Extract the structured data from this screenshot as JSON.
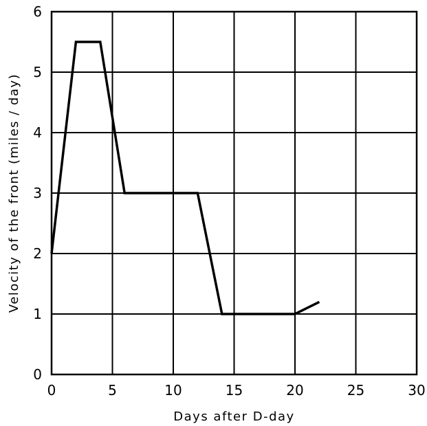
{
  "chart_data": {
    "type": "line",
    "title": "",
    "xlabel": "Days after D-day",
    "ylabel": "Velocity of the front (miles / day)",
    "xlim": [
      0,
      30
    ],
    "ylim": [
      0,
      6
    ],
    "xticks": [
      "0",
      "5",
      "10",
      "15",
      "20",
      "25",
      "30"
    ],
    "yticks": [
      "0",
      "1",
      "2",
      "3",
      "4",
      "5",
      "6"
    ],
    "grid": true,
    "legend": "none",
    "line_color": "#000000",
    "series": [
      {
        "x": [
          0,
          2,
          4,
          6,
          12,
          14,
          20,
          22
        ],
        "y": [
          2,
          5.5,
          5.5,
          3,
          3,
          1,
          1,
          1.2
        ]
      }
    ]
  }
}
